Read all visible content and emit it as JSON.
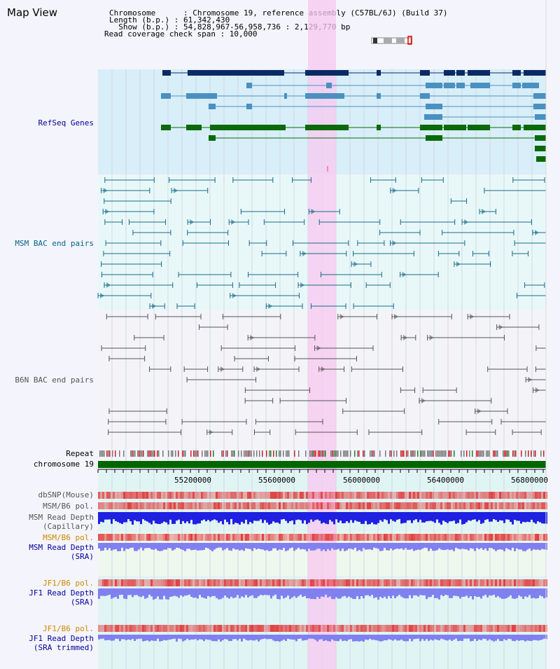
{
  "window": {
    "title": "Map View"
  },
  "info": {
    "chromosome_line": "Chromosome      : Chromosome 19, reference assembly (C57BL/6J) (Build 37)",
    "length_line": "Length (b.p.) : 61,342,430",
    "show_line": "  Show (b.p.) : 54,828,967-56,958,736 : 2,129,770 bp",
    "coverage_line": "Read coverage check span : 10,000"
  },
  "tracks": {
    "refseq": "RefSeq Genes",
    "msm_bac": "MSM BAC end pairs",
    "b6n_bac": "B6N BAC end pairs",
    "repeat": "Repeat",
    "chromosome": "chromosome 19",
    "dbsnp": "dbSNP(Mouse)",
    "msm_b6_pol": "MSM/B6 pol.",
    "msm_depth_cap_1": "MSM Read Depth",
    "msm_depth_cap_2": "(Capillary)",
    "msm_b6_pol_2": "MSM/B6 pol.",
    "msm_depth_sra_1": "MSM Read Depth",
    "msm_depth_sra_2": "(SRA)",
    "jf1_b6_pol": "JF1/B6 pol.",
    "jf1_depth_sra_1": "JF1 Read Depth",
    "jf1_depth_sra_2": "(SRA)",
    "jf1_b6_pol_2": "JF1/B6 pol.",
    "jf1_depth_trim_1": "JF1 Read Depth",
    "jf1_depth_trim_2": "(SRA trimmed)"
  },
  "axis": {
    "ticks": [
      "55200000",
      "55600000",
      "56000000",
      "56400000",
      "56800000"
    ]
  },
  "colors": {
    "refseq_bg": "#d8eef8",
    "bac_bg": "#e8f8f8",
    "highlight": "#f8d0f0",
    "refseq_dark": "#0a2a66",
    "refseq_mid": "#4a90c0",
    "refseq_green": "#0a6a0a",
    "msm_bac": "#1a6a8a",
    "b6n_bac": "#555555",
    "chromosome_bar": "#006600",
    "depth_blue": "#2020e0",
    "depth_lavender": "#8080f0",
    "pol_red": "#e04040"
  }
}
